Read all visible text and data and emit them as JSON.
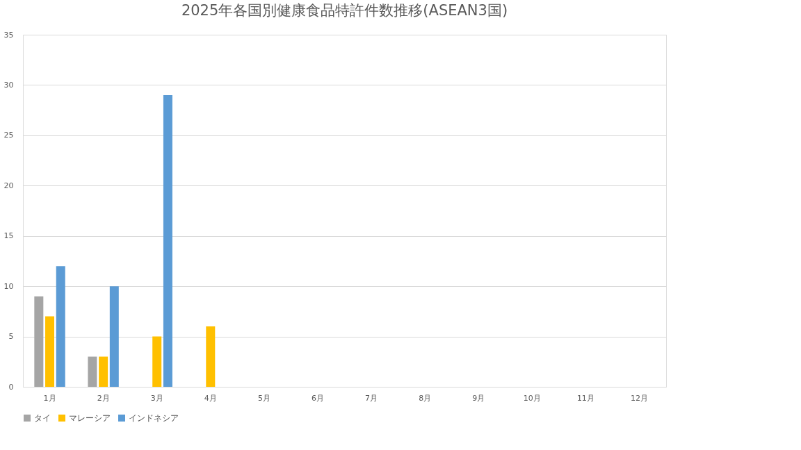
{
  "chart_data": {
    "type": "bar",
    "title": "2025年各国別健康食品特許件数推移(ASEAN3国)",
    "categories": [
      "1月",
      "2月",
      "3月",
      "4月",
      "5月",
      "6月",
      "7月",
      "8月",
      "9月",
      "10月",
      "11月",
      "12月"
    ],
    "series": [
      {
        "name": "タイ",
        "color": "#a5a5a5",
        "values": [
          9,
          3,
          null,
          null,
          null,
          null,
          null,
          null,
          null,
          null,
          null,
          null
        ]
      },
      {
        "name": "マレーシア",
        "color": "#ffc000",
        "values": [
          7,
          3,
          5,
          6,
          null,
          null,
          null,
          null,
          null,
          null,
          null,
          null
        ]
      },
      {
        "name": "インドネシア",
        "color": "#5b9bd5",
        "values": [
          12,
          10,
          29,
          null,
          null,
          null,
          null,
          null,
          null,
          null,
          null,
          null
        ]
      }
    ],
    "ylim": [
      0,
      35
    ],
    "yticks": [
      0,
      5,
      10,
      15,
      20,
      25,
      30,
      35
    ],
    "grid": "y",
    "legend": "bottom"
  }
}
